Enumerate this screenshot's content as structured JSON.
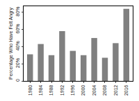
{
  "chart_data": {
    "type": "bar",
    "y_label": "Percentage Who Have Felt Angry",
    "categories": [
      "1980",
      "1984",
      "1988",
      "1992",
      "1996",
      "2000",
      "2004",
      "2008",
      "2012",
      "2016"
    ],
    "values": [
      31,
      43,
      30,
      58,
      35,
      30,
      50,
      27,
      44,
      84
    ],
    "color": "#808080",
    "ylim": [
      0,
      87
    ],
    "yticks": [
      {
        "value": 0,
        "label": "0"
      },
      {
        "value": 20,
        "label": "20%"
      },
      {
        "value": 40,
        "label": "40%"
      },
      {
        "value": 60,
        "label": "60%"
      },
      {
        "value": 80,
        "label": "80%"
      }
    ],
    "grid": false
  }
}
